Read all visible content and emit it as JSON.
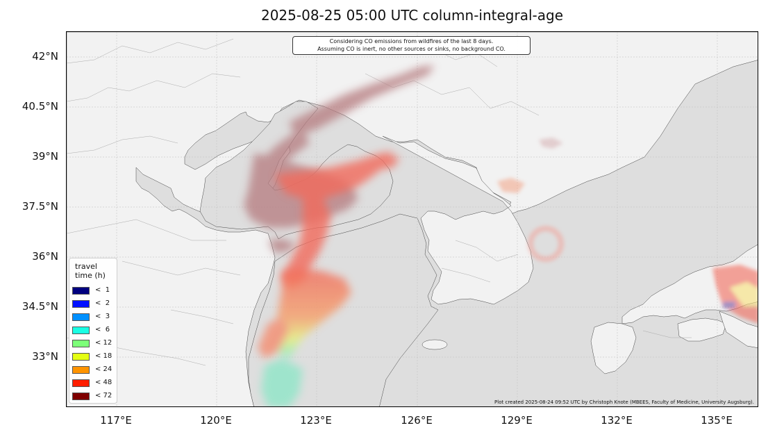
{
  "title": "2025-08-25 05:00 UTC column-integral-age",
  "annotation": {
    "line1": "Considering CO emissions from wildfires of the last 8 days.",
    "line2": "Assuming CO is inert, no other sources or sinks, no background CO."
  },
  "credit": "Plot created 2025-08-24 09:52 UTC by Christoph Knote (MBEES, Faculty of Medicine, University Augsburg).",
  "latitude_labels": [
    "42°N",
    "40.5°N",
    "39°N",
    "37.5°N",
    "36°N",
    "34.5°N",
    "33°N"
  ],
  "longitude_labels": [
    "117°E",
    "120°E",
    "123°E",
    "126°E",
    "129°E",
    "132°E",
    "135°E"
  ],
  "legend": {
    "title_line1": "travel",
    "title_line2": "time (h)",
    "items": [
      {
        "label": "<  1",
        "color": "#00007f"
      },
      {
        "label": "<  2",
        "color": "#0010ff"
      },
      {
        "label": "<  3",
        "color": "#0090ff"
      },
      {
        "label": "<  6",
        "color": "#1affe4"
      },
      {
        "label": "< 12",
        "color": "#7cff79"
      },
      {
        "label": "< 18",
        "color": "#e4ff13"
      },
      {
        "label": "< 24",
        "color": "#ff9400"
      },
      {
        "label": "< 48",
        "color": "#ff1e00"
      },
      {
        "label": "< 72",
        "color": "#7f0000"
      }
    ]
  },
  "colors": {
    "land": "#f2f2f2",
    "sea": "#dedede",
    "border": "#333333",
    "plume_old": "#b57a7e",
    "plume_mid": "#f26b5b",
    "plume_young": "#f9e27a"
  }
}
